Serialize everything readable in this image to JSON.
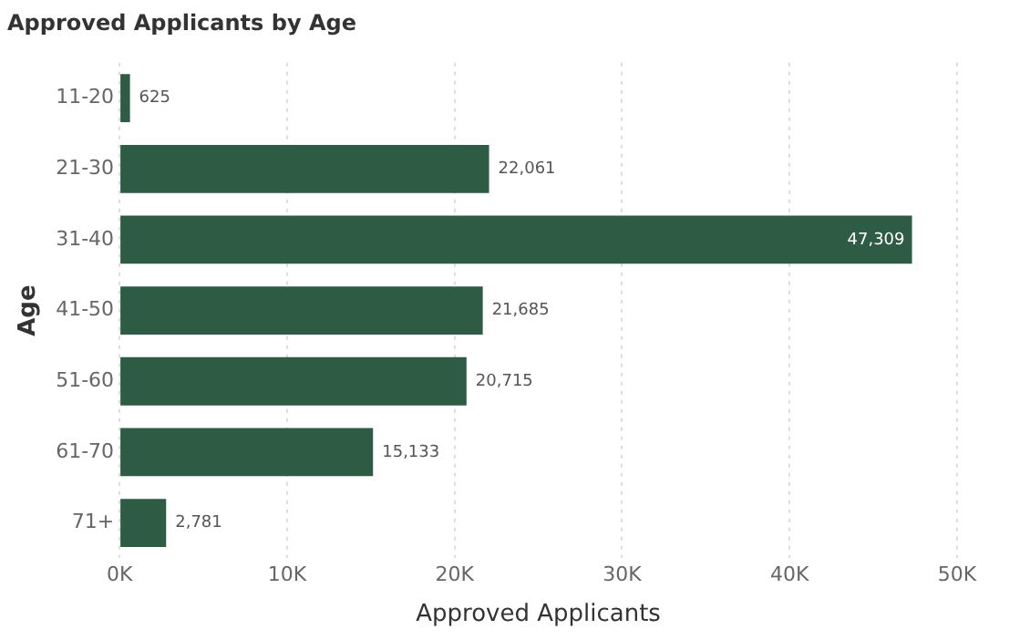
{
  "chart_data": {
    "type": "bar",
    "orientation": "horizontal",
    "title": "Approved Applicants by Age",
    "xlabel": "Approved Applicants",
    "ylabel": "Age",
    "categories": [
      "11-20",
      "21-30",
      "31-40",
      "41-50",
      "51-60",
      "61-70",
      "71+"
    ],
    "values": [
      625,
      22061,
      47309,
      21685,
      20715,
      15133,
      2781
    ],
    "value_labels": [
      "625",
      "22,061",
      "47,309",
      "21,685",
      "20,715",
      "15,133",
      "2,781"
    ],
    "color": "#2e5b43",
    "xlim": [
      0,
      50000
    ],
    "xticks": [
      {
        "value": 0,
        "label": "0K"
      },
      {
        "value": 10000,
        "label": "10K"
      },
      {
        "value": 20000,
        "label": "20K"
      },
      {
        "value": 30000,
        "label": "30K"
      },
      {
        "value": 40000,
        "label": "40K"
      },
      {
        "value": 50000,
        "label": "50K"
      }
    ],
    "grid": "x",
    "legend": false
  }
}
